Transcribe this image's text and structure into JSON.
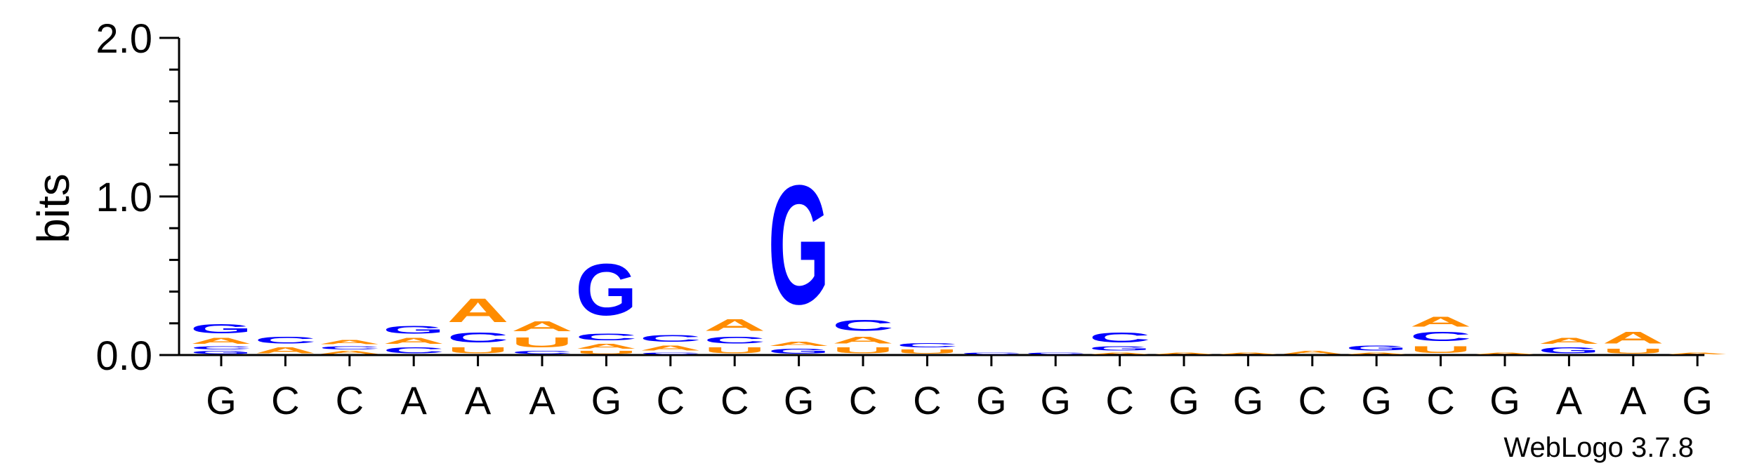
{
  "chart_data": {
    "type": "sequence-logo",
    "ylabel": "bits",
    "ylim": [
      0,
      2.0
    ],
    "y_ticks": [
      "0.0",
      "1.0",
      "2.0"
    ],
    "x_tick_labels": [
      "G",
      "C",
      "C",
      "A",
      "A",
      "A",
      "G",
      "C",
      "C",
      "G",
      "C",
      "C",
      "G",
      "G",
      "C",
      "G",
      "G",
      "C",
      "G",
      "C",
      "G",
      "A",
      "A",
      "G"
    ],
    "colors": {
      "A": "#ff8c00",
      "C": "#0000ff",
      "G": "#0000ff",
      "U": "#ff8c00"
    },
    "positions": [
      [
        [
          "G",
          0.03
        ],
        [
          "C",
          0.03
        ],
        [
          "A",
          0.06
        ],
        [
          "G",
          0.09
        ]
      ],
      [
        [
          "A",
          0.06
        ],
        [
          "C",
          0.07
        ]
      ],
      [
        [
          "A",
          0.03
        ],
        [
          "C",
          0.03
        ],
        [
          "A",
          0.04
        ]
      ],
      [
        [
          "C",
          0.06
        ],
        [
          "A",
          0.06
        ],
        [
          "G",
          0.08
        ]
      ],
      [
        [
          "U",
          0.06
        ],
        [
          "C",
          0.1
        ],
        [
          "A",
          0.24
        ]
      ],
      [
        [
          "C",
          0.03
        ],
        [
          "U",
          0.1
        ],
        [
          "A",
          0.1
        ]
      ],
      [
        [
          "U",
          0.03
        ],
        [
          "A",
          0.05
        ],
        [
          "C",
          0.07
        ],
        [
          "G",
          0.52
        ]
      ],
      [
        [
          "C",
          0.02
        ],
        [
          "A",
          0.05
        ],
        [
          "C",
          0.07
        ]
      ],
      [
        [
          "U",
          0.06
        ],
        [
          "C",
          0.07
        ],
        [
          "A",
          0.12
        ]
      ],
      [
        [
          "G",
          0.05
        ],
        [
          "A",
          0.04
        ],
        [
          "G",
          1.2
        ]
      ],
      [
        [
          "U",
          0.06
        ],
        [
          "A",
          0.07
        ],
        [
          "C",
          0.11
        ]
      ],
      [
        [
          "U",
          0.04
        ],
        [
          "C",
          0.04
        ]
      ],
      [
        [
          "C",
          0.02
        ]
      ],
      [
        [
          "C",
          0.02
        ]
      ],
      [
        [
          "A",
          0.02
        ],
        [
          "G",
          0.04
        ],
        [
          "C",
          0.1
        ]
      ],
      [
        [
          "A",
          0.02
        ]
      ],
      [
        [
          "A",
          0.02
        ]
      ],
      [
        [
          "A",
          0.03
        ]
      ],
      [
        [
          "A",
          0.02
        ],
        [
          "G",
          0.05
        ]
      ],
      [
        [
          "U",
          0.07
        ],
        [
          "C",
          0.09
        ],
        [
          "A",
          0.1
        ]
      ],
      [
        [
          "A",
          0.02
        ]
      ],
      [
        [
          "G",
          0.06
        ],
        [
          "A",
          0.06
        ]
      ],
      [
        [
          "U",
          0.05
        ],
        [
          "A",
          0.12
        ]
      ],
      [
        [
          "A",
          0.02
        ]
      ]
    ]
  },
  "footer": {
    "credit": "WebLogo 3.7.8"
  }
}
